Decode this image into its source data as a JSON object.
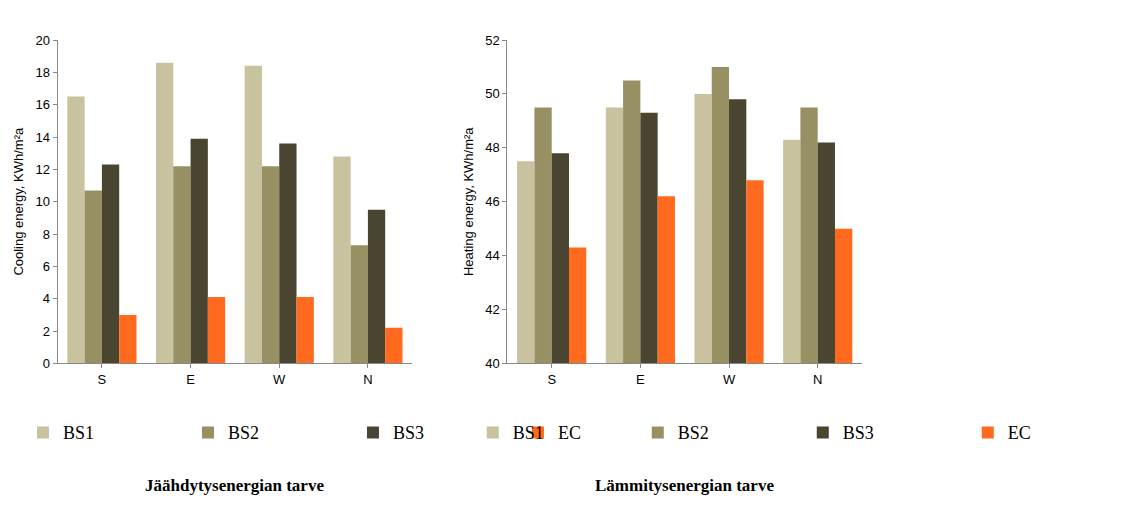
{
  "chart_data": [
    {
      "type": "bar",
      "title": "Jäähdytysenergian tarve",
      "y_label": "Cooling energy, KWh/m²a",
      "categories": [
        "S",
        "E",
        "W",
        "N"
      ],
      "series": [
        {
          "name": "BS1",
          "color": "#c9c29e",
          "values": [
            16.5,
            18.6,
            18.4,
            12.8
          ]
        },
        {
          "name": "BS2",
          "color": "#979063",
          "values": [
            10.7,
            12.2,
            12.2,
            7.3
          ]
        },
        {
          "name": "BS3",
          "color": "#4a4531",
          "values": [
            12.3,
            13.9,
            13.6,
            9.5
          ]
        },
        {
          "name": "EC",
          "color": "#ff6a1f",
          "values": [
            3.0,
            4.1,
            4.1,
            2.2
          ]
        }
      ],
      "ylim": [
        0,
        20
      ],
      "yticks": [
        0,
        2,
        4,
        6,
        8,
        10,
        12,
        14,
        16,
        18,
        20
      ],
      "grid": false,
      "legend": "bottom"
    },
    {
      "type": "bar",
      "title": "Lämmitysenergian tarve",
      "y_label": "Heating energy, KWh/m²a",
      "categories": [
        "S",
        "E",
        "W",
        "N"
      ],
      "series": [
        {
          "name": "BS1",
          "color": "#c9c29e",
          "values": [
            47.5,
            49.5,
            50.0,
            48.3
          ]
        },
        {
          "name": "BS2",
          "color": "#979063",
          "values": [
            49.5,
            50.5,
            51.0,
            49.5
          ]
        },
        {
          "name": "BS3",
          "color": "#4a4531",
          "values": [
            47.8,
            49.3,
            49.8,
            48.2
          ]
        },
        {
          "name": "EC",
          "color": "#ff6a1f",
          "values": [
            44.3,
            46.2,
            46.8,
            45.0
          ]
        }
      ],
      "ylim": [
        40,
        52
      ],
      "yticks": [
        40,
        42,
        44,
        46,
        48,
        50,
        52
      ],
      "grid": false,
      "legend": "bottom"
    }
  ]
}
